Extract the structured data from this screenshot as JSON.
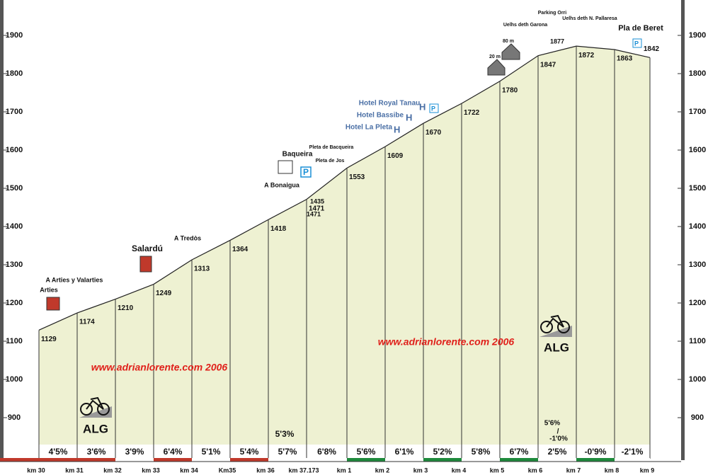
{
  "chart_data": {
    "type": "area",
    "categories": [
      "km 30",
      "km 31",
      "km 32",
      "km 33",
      "km 34",
      "Km35",
      "km 36",
      "km 37.173",
      "km 1",
      "km 2",
      "km 3",
      "km 4",
      "km 5",
      "km 6",
      "km 7",
      "km 8",
      "km 9"
    ],
    "values": [
      1129,
      1174,
      1210,
      1249,
      1313,
      1364,
      1418,
      1471,
      1553,
      1609,
      1670,
      1722,
      1780,
      1847,
      1872,
      1863,
      1842
    ],
    "gradients": [
      "4'5%",
      "3'6%",
      "3'9%",
      "6'4%",
      "5'1%",
      "5'4%",
      "5'7%",
      "6'8%",
      "5'6%",
      "6'1%",
      "5'2%",
      "5'8%",
      "6'7%",
      "2'5%",
      "-0'9%",
      "-2'1%"
    ],
    "segment_colors": [
      "#c0392b",
      "#c0392b",
      "#ffffff",
      "#c0392b",
      "#ffffff",
      "#c0392b",
      "#ffffff",
      "#ffffff",
      "#1e8a3c",
      "#ffffff",
      "#1e8a3c",
      "#ffffff",
      "#1e8a3c",
      "#ffffff",
      "#1e8a3c",
      "#ffffff"
    ],
    "color": "#eef1d2",
    "ylim": [
      800,
      2000
    ],
    "yticks": [
      900,
      1000,
      1100,
      1200,
      1300,
      1400,
      1500,
      1600,
      1700,
      1800,
      1900
    ],
    "annotations": [
      "A Arties  y Valarties",
      "Arties",
      "Salardú",
      "A Tredòs",
      "A Bonaigua",
      "Baqueira",
      "Pleta de Bacqueira",
      "Pleta de Jos",
      "1435",
      "1471",
      "Hotel Royal Tanau",
      "Hotel Bassibe",
      "Hotel La Pleta",
      "20 m",
      "80 m",
      "Uelhs deth Garona",
      "Parking Orri",
      "Uelhs deth N. Pallaresa",
      "Pla de Beret",
      "1877",
      "5'3%",
      "5'6%",
      "/",
      "-1'0%"
    ],
    "watermark": "www.adrianlorente.com 2006",
    "logo": "ALG"
  }
}
